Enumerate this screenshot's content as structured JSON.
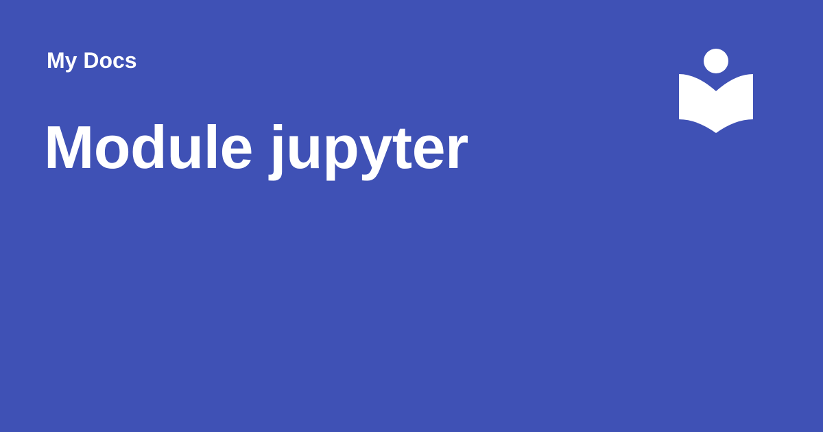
{
  "header": {
    "site_name": "My Docs"
  },
  "main": {
    "title": "Module jupyter"
  },
  "logo": {
    "icon": "reader-book-icon"
  },
  "colors": {
    "background": "#3f51b5",
    "foreground": "#ffffff"
  }
}
